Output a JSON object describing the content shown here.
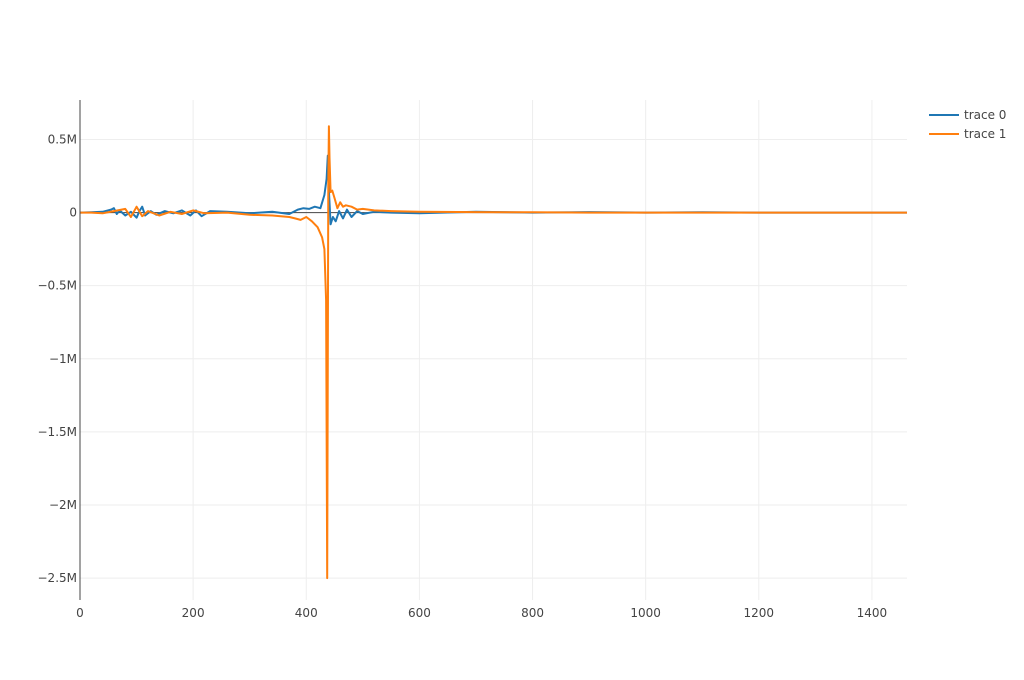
{
  "chart_data": {
    "type": "line",
    "title": "",
    "xlabel": "",
    "ylabel": "",
    "xlim": [
      0,
      1462
    ],
    "ylim": [
      -2650000,
      770000
    ],
    "grid": true,
    "legend_position": "top-right",
    "x_ticks": [
      {
        "value": 0,
        "label": "0"
      },
      {
        "value": 200,
        "label": "200"
      },
      {
        "value": 400,
        "label": "400"
      },
      {
        "value": 600,
        "label": "600"
      },
      {
        "value": 800,
        "label": "800"
      },
      {
        "value": 1000,
        "label": "1000"
      },
      {
        "value": 1200,
        "label": "1200"
      },
      {
        "value": 1400,
        "label": "1400"
      }
    ],
    "y_ticks": [
      {
        "value": 500000,
        "label": "0.5M"
      },
      {
        "value": 0,
        "label": "0"
      },
      {
        "value": -500000,
        "label": "−0.5M"
      },
      {
        "value": -1000000,
        "label": "−1M"
      },
      {
        "value": -1500000,
        "label": "−1.5M"
      },
      {
        "value": -2000000,
        "label": "−2M"
      },
      {
        "value": -2500000,
        "label": "−2.5M"
      }
    ],
    "series": [
      {
        "name": "trace 0",
        "color": "#1f77b4",
        "x": [
          0,
          20,
          40,
          55,
          60,
          65,
          70,
          80,
          90,
          100,
          105,
          110,
          115,
          125,
          135,
          150,
          165,
          180,
          195,
          205,
          215,
          230,
          260,
          300,
          340,
          370,
          385,
          395,
          405,
          415,
          425,
          432,
          436,
          438,
          440,
          443,
          447,
          452,
          458,
          465,
          472,
          480,
          490,
          500,
          520,
          550,
          600,
          700,
          800,
          900,
          1000,
          1100,
          1200,
          1300,
          1400,
          1462
        ],
        "y": [
          0,
          2000,
          5000,
          20000,
          30000,
          -10000,
          15000,
          -20000,
          5000,
          -35000,
          10000,
          40000,
          -20000,
          10000,
          -15000,
          10000,
          -5000,
          15000,
          -20000,
          15000,
          -25000,
          10000,
          5000,
          -5000,
          5000,
          -10000,
          20000,
          30000,
          25000,
          40000,
          30000,
          120000,
          230000,
          390000,
          150000,
          -80000,
          -30000,
          -60000,
          10000,
          -40000,
          20000,
          -30000,
          10000,
          -10000,
          5000,
          0,
          -5000,
          5000,
          0,
          3000,
          0,
          2000,
          0,
          0,
          0,
          0
        ]
      },
      {
        "name": "trace 1",
        "color": "#ff7f0e",
        "x": [
          0,
          20,
          40,
          60,
          80,
          90,
          100,
          110,
          120,
          140,
          160,
          180,
          200,
          220,
          260,
          300,
          340,
          370,
          380,
          390,
          400,
          410,
          420,
          428,
          432,
          435,
          437,
          438,
          439,
          440,
          441,
          443,
          446,
          450,
          455,
          460,
          465,
          470,
          480,
          490,
          500,
          520,
          550,
          600,
          700,
          800,
          900,
          1000,
          1100,
          1200,
          1300,
          1400,
          1462
        ],
        "y": [
          0,
          0,
          -5000,
          10000,
          25000,
          -30000,
          40000,
          -25000,
          10000,
          -20000,
          5000,
          -10000,
          15000,
          -5000,
          0,
          -15000,
          -20000,
          -30000,
          -40000,
          -50000,
          -30000,
          -60000,
          -100000,
          -170000,
          -250000,
          -600000,
          -2500000,
          -1000000,
          200000,
          590000,
          380000,
          140000,
          150000,
          100000,
          30000,
          70000,
          40000,
          50000,
          40000,
          20000,
          25000,
          15000,
          10000,
          5000,
          3000,
          2000,
          0,
          0,
          0,
          0,
          0,
          0,
          0
        ]
      }
    ]
  }
}
